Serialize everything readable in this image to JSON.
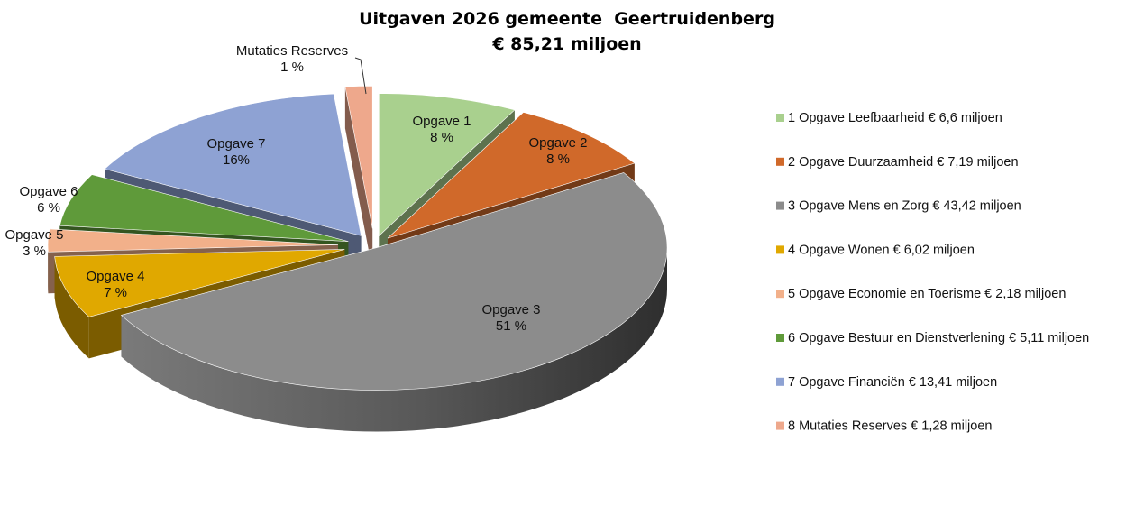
{
  "chart_data": {
    "type": "pie",
    "title": "Uitgaven 2026 gemeente  Geertruidenberg",
    "subtitle": "€ 85,21 miljoen",
    "unit": "miljoen",
    "slices": [
      {
        "label": "Opgave 1",
        "pct_label": "8 %",
        "value": 6.6,
        "legend": "1 Opgave Leefbaarheid € 6,6 miljoen",
        "color": "#a9d08e"
      },
      {
        "label": "Opgave 2",
        "pct_label": "8 %",
        "value": 7.19,
        "legend": "2 Opgave Duurzaamheid € 7,19 miljoen",
        "color": "#d0692a"
      },
      {
        "label": "Opgave 3",
        "pct_label": "51 %",
        "value": 43.42,
        "legend": "3 Opgave Mens en Zorg € 43,42 miljoen",
        "color": "#8c8c8c"
      },
      {
        "label": "Opgave 4",
        "pct_label": "7 %",
        "value": 6.02,
        "legend": "4 Opgave Wonen € 6,02 miljoen",
        "color": "#e0a800"
      },
      {
        "label": "Opgave 5",
        "pct_label": "3 %",
        "value": 2.18,
        "legend": "5 Opgave Economie en Toerisme € 2,18 miljoen",
        "color": "#f2b08a"
      },
      {
        "label": "Opgave 6",
        "pct_label": "6 %",
        "value": 5.11,
        "legend": "6 Opgave Bestuur en Dienstverlening € 5,11 miljoen",
        "color": "#5f9a3a"
      },
      {
        "label": "Opgave 7",
        "pct_label": "16%",
        "value": 13.41,
        "legend": "7 Opgave Financiën € 13,41 miljoen",
        "color": "#8ea2d3"
      },
      {
        "label": "Mutaties Reserves",
        "pct_label": "1 %",
        "value": 1.28,
        "legend": "8 Mutaties Reserves € 1,28 miljoen",
        "color": "#eea88c"
      }
    ],
    "legend_position": "right",
    "style": "3d-exploded"
  }
}
